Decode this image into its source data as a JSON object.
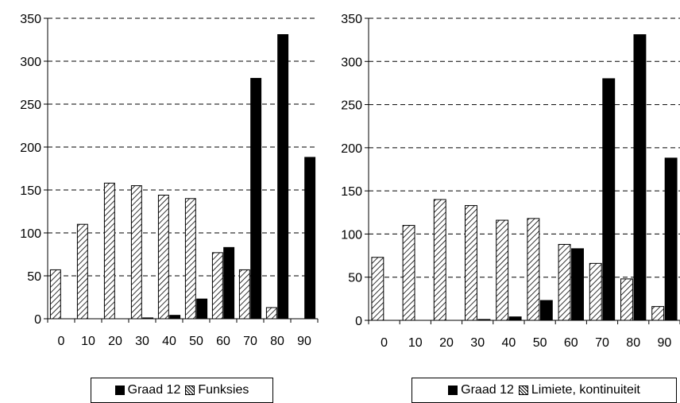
{
  "chart_data": [
    {
      "type": "bar",
      "categories": [
        "0",
        "10",
        "20",
        "30",
        "40",
        "50",
        "60",
        "70",
        "80",
        "90"
      ],
      "series": [
        {
          "name": "Graad 12",
          "values": [
            0,
            0,
            0,
            1,
            4,
            23,
            83,
            280,
            331,
            188
          ],
          "fill": "solid"
        },
        {
          "name": "Funksies",
          "values": [
            57,
            110,
            158,
            155,
            144,
            140,
            77,
            57,
            13,
            0
          ],
          "fill": "hatch"
        }
      ],
      "ylim": [
        0,
        350
      ],
      "yticks": [
        0,
        50,
        100,
        150,
        200,
        250,
        300,
        350
      ],
      "grid": "dashed-horizontal",
      "legend": "bottom",
      "title": "",
      "xlabel": "",
      "ylabel": ""
    },
    {
      "type": "bar",
      "categories": [
        "0",
        "10",
        "20",
        "30",
        "40",
        "50",
        "60",
        "70",
        "80",
        "90"
      ],
      "series": [
        {
          "name": "Graad 12",
          "values": [
            0,
            0,
            0,
            1,
            4,
            23,
            83,
            280,
            331,
            188
          ],
          "fill": "solid"
        },
        {
          "name": "Limiete, kontinuiteit",
          "values": [
            73,
            110,
            140,
            133,
            116,
            118,
            88,
            66,
            48,
            16
          ],
          "fill": "hatch"
        }
      ],
      "ylim": [
        0,
        350
      ],
      "yticks": [
        0,
        50,
        100,
        150,
        200,
        250,
        300,
        350
      ],
      "grid": "dashed-horizontal",
      "legend": "bottom",
      "title": "",
      "xlabel": "",
      "ylabel": ""
    }
  ],
  "colors": {
    "solid": "#000000",
    "hatch_line": "#000000",
    "hatch_bg": "#ffffff",
    "grid": "#000000"
  }
}
